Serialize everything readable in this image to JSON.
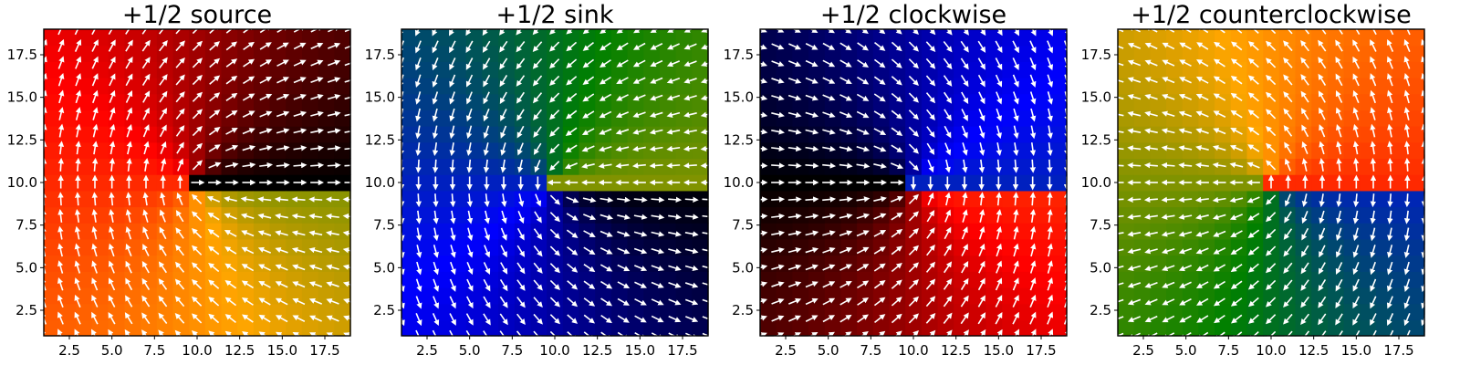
{
  "chart_data": [
    {
      "type": "heatmap",
      "title": "+1/2 source",
      "defect": "source",
      "xlim": [
        1,
        19
      ],
      "ylim": [
        1,
        19
      ],
      "xticks": [
        2.5,
        5.0,
        7.5,
        10.0,
        12.5,
        15.0,
        17.5
      ],
      "yticks": [
        2.5,
        5.0,
        7.5,
        10.0,
        12.5,
        15.0,
        17.5
      ],
      "xtick_labels": [
        "2.5",
        "5.0",
        "7.5",
        "10.0",
        "12.5",
        "15.0",
        "17.5"
      ],
      "ytick_labels": [
        "2.5",
        "5.0",
        "7.5",
        "10.0",
        "12.5",
        "15.0",
        "17.5"
      ],
      "defect_center": [
        10,
        10
      ],
      "grid_size": 19,
      "field": "director angle = φ/2, white arrows",
      "colormap": [
        "#000000",
        "#ff0000",
        "#ffa500",
        "#008000",
        "#0000ff",
        "#000000"
      ]
    },
    {
      "type": "heatmap",
      "title": "+1/2 sink",
      "defect": "sink",
      "xlim": [
        1,
        19
      ],
      "ylim": [
        1,
        19
      ],
      "xticks": [
        2.5,
        5.0,
        7.5,
        10.0,
        12.5,
        15.0,
        17.5
      ],
      "yticks": [
        2.5,
        5.0,
        7.5,
        10.0,
        12.5,
        15.0,
        17.5
      ],
      "xtick_labels": [
        "2.5",
        "5.0",
        "7.5",
        "10.0",
        "12.5",
        "15.0",
        "17.5"
      ],
      "ytick_labels": [
        "2.5",
        "5.0",
        "7.5",
        "10.0",
        "12.5",
        "15.0",
        "17.5"
      ],
      "defect_center": [
        10,
        10
      ],
      "grid_size": 19,
      "field": "director angle = φ/2 + π, white arrows",
      "colormap": [
        "#000000",
        "#ff0000",
        "#ffa500",
        "#008000",
        "#0000ff",
        "#000000"
      ]
    },
    {
      "type": "heatmap",
      "title": "+1/2 clockwise",
      "defect": "clockwise",
      "xlim": [
        1,
        19
      ],
      "ylim": [
        1,
        19
      ],
      "xticks": [
        2.5,
        5.0,
        7.5,
        10.0,
        12.5,
        15.0,
        17.5
      ],
      "yticks": [
        2.5,
        5.0,
        7.5,
        10.0,
        12.5,
        15.0,
        17.5
      ],
      "xtick_labels": [
        "2.5",
        "5.0",
        "7.5",
        "10.0",
        "12.5",
        "15.0",
        "17.5"
      ],
      "ytick_labels": [
        "2.5",
        "5.0",
        "7.5",
        "10.0",
        "12.5",
        "15.0",
        "17.5"
      ],
      "defect_center": [
        10,
        10
      ],
      "grid_size": 19,
      "field": "director angle = φ/2 - π/2, white arrows",
      "colormap": [
        "#000000",
        "#ff0000",
        "#ffa500",
        "#008000",
        "#0000ff",
        "#000000"
      ]
    },
    {
      "type": "heatmap",
      "title": "+1/2 counterclockwise",
      "defect": "counterclockwise",
      "xlim": [
        1,
        19
      ],
      "ylim": [
        1,
        19
      ],
      "xticks": [
        2.5,
        5.0,
        7.5,
        10.0,
        12.5,
        15.0,
        17.5
      ],
      "yticks": [
        2.5,
        5.0,
        7.5,
        10.0,
        12.5,
        15.0,
        17.5
      ],
      "xtick_labels": [
        "2.5",
        "5.0",
        "7.5",
        "10.0",
        "12.5",
        "15.0",
        "17.5"
      ],
      "ytick_labels": [
        "2.5",
        "5.0",
        "7.5",
        "10.0",
        "12.5",
        "15.0",
        "17.5"
      ],
      "defect_center": [
        10,
        10
      ],
      "grid_size": 19,
      "field": "director angle = φ/2 + π/2, white arrows",
      "colormap": [
        "#000000",
        "#ff0000",
        "#ffa500",
        "#008000",
        "#0000ff",
        "#000000"
      ]
    }
  ]
}
